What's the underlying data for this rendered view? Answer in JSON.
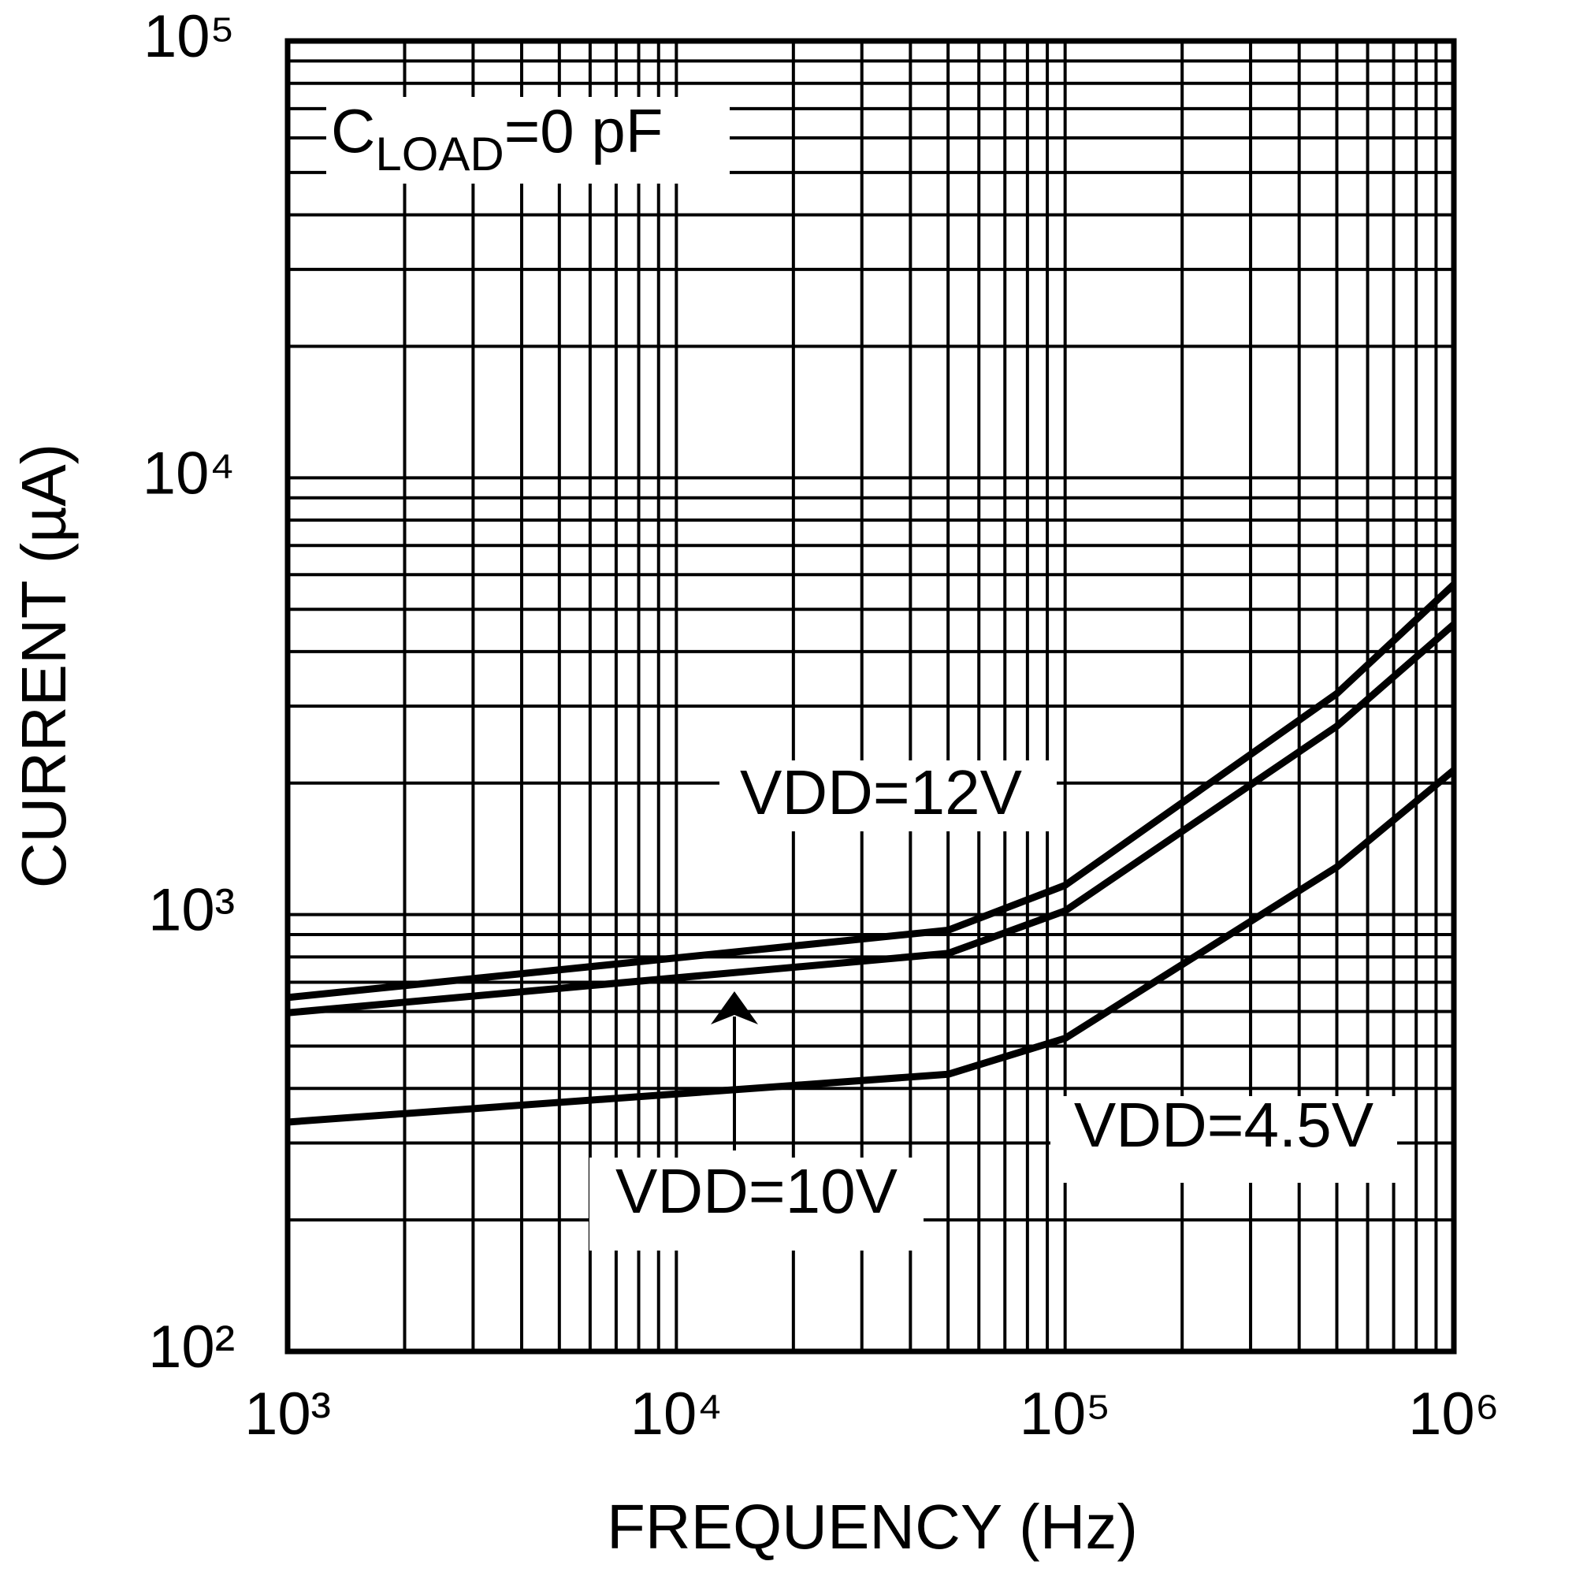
{
  "chart_data": {
    "type": "line",
    "x_label": "FREQUENCY (Hz)",
    "y_label": "CURRENT (µA)",
    "annotation": [
      "C",
      "LOAD",
      "=0 pF"
    ],
    "x_log": true,
    "y_log": true,
    "grid": true,
    "xlim": [
      1000,
      1000000
    ],
    "ylim": [
      100,
      100000
    ],
    "xticks": [
      {
        "value": 1000,
        "label": "10³"
      },
      {
        "value": 10000,
        "label": "10⁴"
      },
      {
        "value": 100000,
        "label": "10⁵"
      },
      {
        "value": 1000000,
        "label": "10⁶"
      }
    ],
    "yticks": [
      {
        "value": 100,
        "label": "10²"
      },
      {
        "value": 1000,
        "label": "10³"
      },
      {
        "value": 10000,
        "label": "10⁴"
      },
      {
        "value": 100000,
        "label": "10⁵"
      }
    ],
    "xminorticks": [
      2000,
      3000,
      4000,
      5000,
      6000,
      7000,
      8000,
      9000,
      20000,
      30000,
      40000,
      50000,
      60000,
      70000,
      80000,
      90000,
      200000,
      300000,
      400000,
      500000,
      600000,
      700000,
      800000,
      900000
    ],
    "yminorticks": [
      200,
      300,
      400,
      500,
      600,
      700,
      800,
      900,
      2000,
      3000,
      4000,
      5000,
      6000,
      7000,
      8000,
      9000,
      20000,
      30000,
      40000,
      50000,
      60000,
      70000,
      80000,
      90000
    ],
    "x": [
      1000,
      50000,
      100000,
      500000,
      1000000
    ],
    "series": [
      {
        "name": "VDD=12V",
        "color": "#000000",
        "values": [
          646,
          921,
          1167,
          3206,
          5700
        ]
      },
      {
        "name": "VDD=10V",
        "color": "#000000",
        "values": [
          596,
          815,
          1020,
          2700,
          4620
        ]
      },
      {
        "name": "VDD=4.5V",
        "color": "#000000",
        "values": [
          335,
          431,
          521,
          1285,
          2142
        ]
      }
    ]
  }
}
